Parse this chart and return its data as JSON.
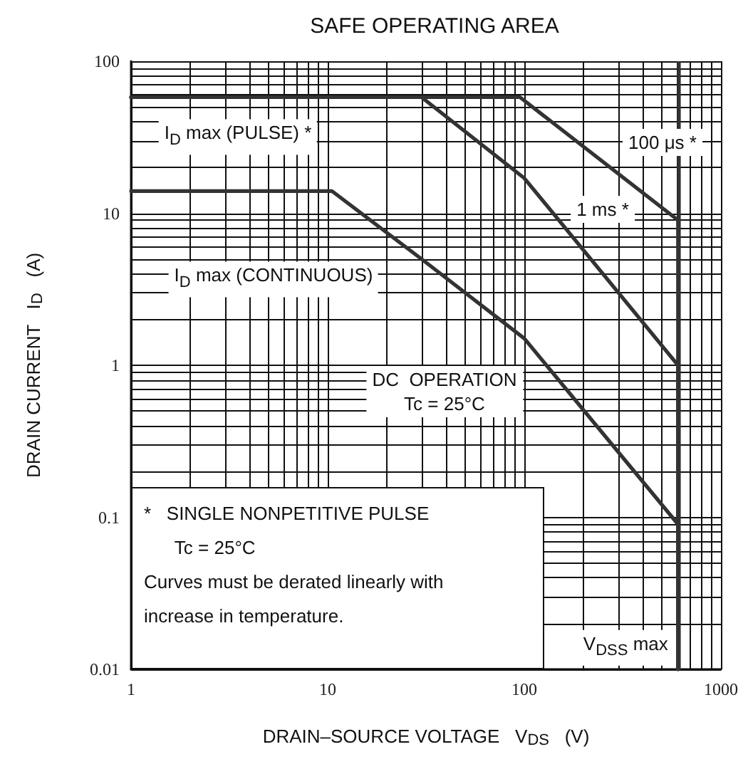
{
  "chart_data": {
    "type": "line",
    "title": "SAFE OPERATING AREA",
    "xlabel": "DRAIN–SOURCE VOLTAGE   V$_{DS}$   (V)",
    "ylabel": "DRAIN CURRENT   I$_{D}$   (A)",
    "log": "xy",
    "grid": true,
    "marker": "none",
    "line_style": "solid",
    "xlim": [
      1,
      1000
    ],
    "xticks": [
      1,
      10,
      100,
      1000
    ],
    "ylim": [
      0.01,
      100
    ],
    "yticks": [
      0.01,
      0.1,
      1,
      10,
      100
    ],
    "series": [
      {
        "color": "#333333",
        "x": [
          1,
          95,
          605,
          605
        ],
        "values": [
          58,
          58,
          9,
          0.01
        ]
      },
      {
        "color": "#333333",
        "x": [
          1,
          30,
          100,
          605,
          605
        ],
        "values": [
          58,
          58,
          17,
          1,
          0.01
        ]
      },
      {
        "color": "#333333",
        "x": [
          1,
          10.5,
          30,
          100,
          605,
          605
        ],
        "values": [
          14,
          14,
          5,
          1.5,
          0.09,
          0.01
        ]
      }
    ],
    "ref_lines": [
      {
        "axis": "x",
        "value": 605,
        "label": "V$_{DSS}$ max",
        "color": "#333333"
      }
    ],
    "annotations": [
      "I$_{D}$ max (PULSE) *",
      "100 μs *",
      "1 ms *",
      "I$_{D}$ max (CONTINUOUS)",
      "DC  OPERATION\nTc = 25°C",
      "*   SINGLE NONPETITIVE PULSE",
      "      Tc = 25°C",
      "Curves must be derated linearly with",
      "increase in temperature."
    ]
  }
}
